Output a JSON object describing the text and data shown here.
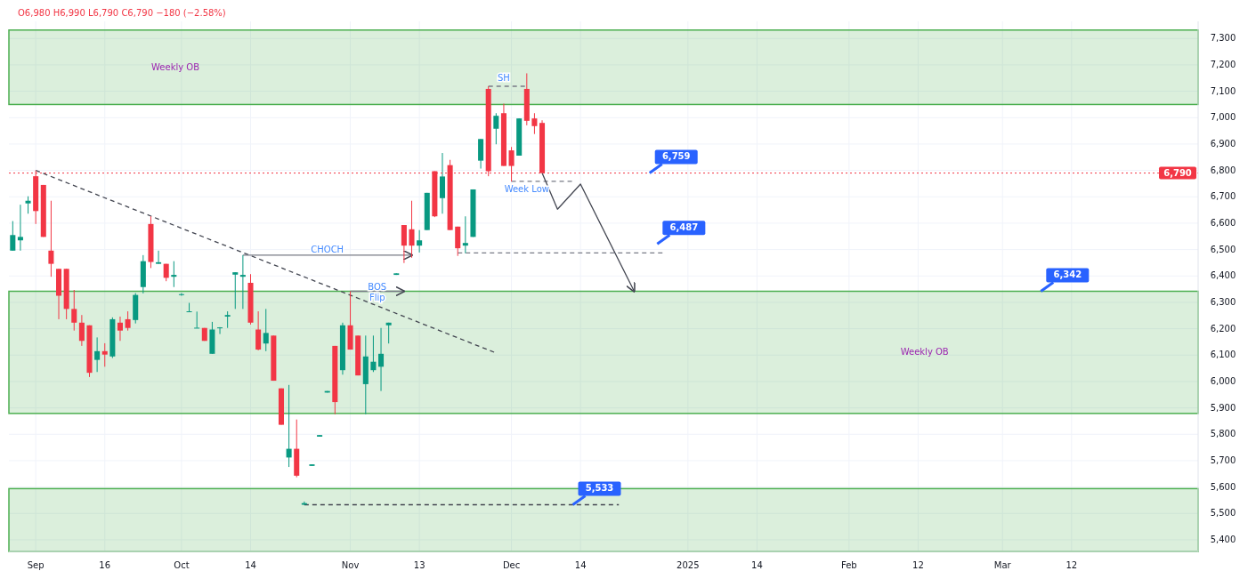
{
  "chart_data": {
    "type": "candlestick",
    "categories": [
      null,
      null,
      null,
      "Sep",
      null,
      null,
      null,
      null,
      null,
      null,
      null,
      null,
      "16",
      null,
      null,
      null,
      null,
      null,
      null,
      null,
      null,
      null,
      "Oct",
      null,
      null,
      null,
      null,
      null,
      null,
      null,
      null,
      "14",
      null,
      null,
      null,
      null,
      null,
      null,
      null,
      null,
      null,
      null,
      null,
      null,
      "Nov",
      null,
      null,
      null,
      null,
      null,
      null,
      null,
      null,
      "13",
      null,
      null,
      null,
      null,
      null,
      null,
      null,
      null,
      null,
      null,
      null,
      "Dec",
      null,
      null,
      null,
      null,
      null,
      null,
      null,
      null,
      "14",
      null,
      null,
      null,
      null,
      null,
      null,
      null,
      null,
      null,
      null,
      null,
      null,
      null,
      "2025",
      null,
      null,
      null,
      null,
      null,
      null,
      null,
      null,
      "14",
      null,
      null,
      null,
      null,
      null,
      null,
      null,
      null,
      null,
      null,
      null,
      "Feb",
      null,
      null,
      null,
      null,
      null,
      null,
      null,
      null,
      "12",
      null,
      null,
      null,
      null,
      null,
      null,
      null,
      null,
      null,
      null,
      "Mar",
      null,
      null,
      null,
      null,
      null,
      null,
      null,
      null,
      "12",
      null,
      null,
      null,
      null,
      null,
      null,
      null,
      null,
      null,
      null,
      null,
      null,
      null,
      null,
      null,
      null
    ],
    "ohlc": [
      [
        6496,
        6608,
        6496,
        6555
      ],
      [
        6535,
        6670,
        6496,
        6548
      ],
      [
        6675,
        6702,
        6636,
        6685
      ],
      [
        6778,
        6800,
        6597,
        6646
      ],
      [
        6745,
        6745,
        6548,
        6548
      ],
      [
        6496,
        6685,
        6397,
        6446
      ],
      [
        6427,
        6427,
        6236,
        6325
      ],
      [
        6427,
        6427,
        6236,
        6275
      ],
      [
        6275,
        6347,
        6193,
        6223
      ],
      [
        6223,
        6252,
        6135,
        6154
      ],
      [
        6213,
        6213,
        6017,
        6033
      ],
      [
        6082,
        6167,
        6036,
        6115
      ],
      [
        6115,
        6145,
        6056,
        6102
      ],
      [
        6095,
        6243,
        6089,
        6236
      ],
      [
        6223,
        6246,
        6154,
        6193
      ],
      [
        6236,
        6266,
        6193,
        6203
      ],
      [
        6233,
        6335,
        6220,
        6328
      ],
      [
        6358,
        6479,
        6334,
        6456
      ],
      [
        6597,
        6626,
        6430,
        6453
      ],
      [
        6446,
        6496,
        6446,
        6452
      ],
      [
        6446,
        6446,
        6380,
        6393
      ],
      [
        6397,
        6456,
        6358,
        6404
      ],
      [
        6330,
        6335,
        6325,
        6331
      ],
      [
        6265,
        6298,
        6265,
        6266
      ],
      [
        6203,
        6265,
        6203,
        6204
      ],
      [
        6203,
        6203,
        6154,
        6154
      ],
      [
        6105,
        6226,
        6105,
        6197
      ],
      [
        6203,
        6206,
        6180,
        6205
      ],
      [
        6246,
        6266,
        6203,
        6252
      ],
      [
        6405,
        6414,
        6275,
        6414
      ],
      [
        6397,
        6479,
        6275,
        6404
      ],
      [
        6374,
        6407,
        6216,
        6223
      ],
      [
        6197,
        6266,
        6118,
        6121
      ],
      [
        6144,
        6275,
        6115,
        6184
      ],
      [
        6174,
        6174,
        6003,
        6003
      ],
      [
        5974,
        5974,
        5836,
        5836
      ],
      [
        5712,
        5987,
        5676,
        5745
      ],
      [
        5745,
        5856,
        5637,
        5643
      ],
      [
        5533,
        5545,
        5533,
        5539
      ],
      [
        5680,
        5686,
        5680,
        5686
      ],
      [
        5791,
        5797,
        5791,
        5797
      ],
      [
        5958,
        5964,
        5958,
        5964
      ],
      [
        6135,
        6135,
        5876,
        5922
      ],
      [
        6043,
        6223,
        6026,
        6213
      ],
      [
        6213,
        6342,
        6121,
        6121
      ],
      [
        6174,
        6174,
        6023,
        6023
      ],
      [
        5990,
        6174,
        5876,
        6095
      ],
      [
        6043,
        6174,
        6036,
        6075
      ],
      [
        6056,
        6203,
        5964,
        6105
      ],
      [
        6213,
        6223,
        6144,
        6223
      ],
      [
        6404,
        6410,
        6404,
        6410
      ],
      [
        6593,
        6593,
        6449,
        6515
      ],
      [
        6577,
        6685,
        6469,
        6515
      ],
      [
        6515,
        6574,
        6489,
        6535
      ],
      [
        6574,
        6715,
        6574,
        6715
      ],
      [
        6797,
        6797,
        6623,
        6626
      ],
      [
        6695,
        6866,
        6636,
        6777
      ],
      [
        6820,
        6840,
        6574,
        6574
      ],
      [
        6587,
        6587,
        6476,
        6505
      ],
      [
        6515,
        6626,
        6486,
        6525
      ],
      [
        6548,
        6728,
        6548,
        6728
      ],
      [
        6837,
        6919,
        6807,
        6919
      ],
      [
        7109,
        7119,
        6778,
        6797
      ],
      [
        6958,
        7017,
        6899,
        7007
      ],
      [
        7017,
        7053,
        6817,
        6817
      ],
      [
        6876,
        6889,
        6758,
        6817
      ],
      [
        6856,
        6997,
        6856,
        6997
      ],
      [
        7109,
        7168,
        6971,
        6988
      ],
      [
        6997,
        7017,
        6938,
        6968
      ],
      [
        6980,
        6990,
        6790,
        6790
      ],
      null,
      null,
      null,
      null,
      null,
      null,
      null,
      null,
      null,
      null,
      null,
      null,
      null,
      null,
      null,
      null,
      null,
      null,
      null,
      null,
      null,
      null,
      null,
      null,
      null,
      null,
      null,
      null,
      null,
      null,
      null,
      null,
      null,
      null,
      null,
      null,
      null,
      null,
      null,
      null,
      null,
      null,
      null,
      null,
      null,
      null,
      null,
      null,
      null,
      null,
      null,
      null,
      null,
      null,
      null,
      null,
      null,
      null,
      null,
      null,
      null,
      null,
      null,
      null,
      null,
      null,
      null,
      null,
      null,
      null,
      null,
      null,
      null,
      null,
      null,
      null,
      null,
      null,
      null,
      null,
      null,
      null,
      null,
      null,
      null
    ],
    "series": [
      {
        "type": "line",
        "color": "#434651",
        "line_style": "dashed",
        "values": [
          null,
          null,
          null,
          6800,
          null,
          null,
          null,
          null,
          null,
          null,
          null,
          null,
          null,
          null,
          null,
          null,
          null,
          null,
          null,
          null,
          null,
          null,
          null,
          null,
          null,
          null,
          null,
          null,
          null,
          null,
          null,
          null,
          null,
          null,
          null,
          null,
          null,
          null,
          null,
          null,
          null,
          null,
          null,
          null,
          null,
          null,
          null,
          null,
          null,
          null,
          null,
          null,
          null,
          null,
          null,
          null,
          null,
          null,
          null,
          null,
          null,
          null,
          null,
          6108,
          null,
          null,
          null,
          null,
          null,
          null,
          null,
          null,
          null,
          null,
          null,
          null,
          null,
          null,
          null,
          null,
          null,
          null,
          null,
          null,
          null,
          null,
          null,
          null,
          null,
          null,
          null,
          null,
          null,
          null,
          null,
          null,
          null,
          null,
          null,
          null,
          null,
          null,
          null,
          null,
          null,
          null,
          null,
          null,
          null,
          null,
          null,
          null,
          null,
          null,
          null,
          null,
          null,
          null,
          null,
          null,
          null,
          null,
          null,
          null,
          null,
          null,
          null,
          null,
          null,
          null,
          null,
          null,
          null,
          null,
          null,
          null,
          null,
          null,
          null,
          null,
          null,
          null,
          null,
          null,
          null,
          null,
          null,
          null,
          null,
          null,
          null,
          null,
          null,
          null,
          null
        ]
      },
      {
        "type": "line",
        "color": "#787b86",
        "line_style": "solid",
        "values": [
          null,
          null,
          null,
          null,
          null,
          null,
          null,
          null,
          null,
          null,
          null,
          null,
          null,
          null,
          null,
          null,
          null,
          null,
          null,
          null,
          null,
          null,
          null,
          null,
          null,
          null,
          null,
          null,
          null,
          null,
          6479,
          null,
          null,
          null,
          null,
          null,
          null,
          null,
          null,
          null,
          null,
          null,
          null,
          null,
          null,
          null,
          null,
          null,
          null,
          null,
          null,
          null,
          6479,
          null,
          null,
          null,
          null,
          null,
          null,
          null,
          null,
          null,
          null,
          null,
          null,
          null,
          null,
          null,
          null,
          null,
          null,
          null,
          null,
          null,
          null,
          null,
          null,
          null,
          null,
          null,
          null,
          null,
          null,
          null,
          null,
          null,
          null,
          null,
          null,
          null,
          null,
          null,
          null,
          null,
          null,
          null,
          null,
          null,
          null,
          null,
          null,
          null,
          null,
          null,
          null,
          null,
          null,
          null,
          null,
          null,
          null,
          null,
          null,
          null,
          null,
          null,
          null,
          null,
          null,
          null,
          null,
          null,
          null,
          null,
          null,
          null,
          null,
          null,
          null,
          null,
          null,
          null,
          null,
          null,
          null,
          null,
          null,
          null,
          null,
          null,
          null,
          null,
          null,
          null,
          null,
          null,
          null,
          null,
          null,
          null,
          null,
          null,
          null,
          null,
          null
        ]
      },
      {
        "type": "line",
        "color": "#787b86",
        "line_style": "solid",
        "values": [
          null,
          null,
          null,
          null,
          null,
          null,
          null,
          null,
          null,
          null,
          null,
          null,
          null,
          null,
          null,
          null,
          null,
          null,
          null,
          null,
          null,
          null,
          null,
          null,
          null,
          null,
          null,
          null,
          null,
          null,
          null,
          null,
          null,
          null,
          null,
          null,
          null,
          null,
          null,
          null,
          null,
          null,
          null,
          null,
          6342,
          null,
          null,
          null,
          null,
          null,
          null,
          6342,
          null,
          null,
          null,
          null,
          null,
          null,
          null,
          null,
          null,
          null,
          null,
          null,
          null,
          null,
          null,
          null,
          null,
          null,
          null,
          null,
          null,
          null,
          null,
          null,
          null,
          null,
          null,
          null,
          null,
          null,
          null,
          null,
          null,
          null,
          null,
          null,
          null,
          null,
          null,
          null,
          null,
          null,
          null,
          null,
          null,
          null,
          null,
          null,
          null,
          null,
          null,
          null,
          null,
          null,
          null,
          null,
          null,
          null,
          null,
          null,
          null,
          null,
          null,
          null,
          null,
          null,
          null,
          null,
          null,
          null,
          null,
          null,
          null,
          null,
          null,
          null,
          null,
          null,
          null,
          null,
          null,
          null,
          null,
          null,
          null,
          null,
          null,
          null,
          null,
          null,
          null,
          null,
          null,
          null,
          null,
          null,
          null,
          null,
          null,
          null,
          null,
          null,
          null
        ]
      },
      {
        "type": "line",
        "color": "#787b86",
        "line_style": "dashed",
        "values": [
          null,
          null,
          null,
          null,
          null,
          null,
          null,
          null,
          null,
          null,
          null,
          null,
          null,
          null,
          null,
          null,
          null,
          null,
          null,
          null,
          null,
          null,
          null,
          null,
          null,
          null,
          null,
          null,
          null,
          null,
          null,
          null,
          null,
          null,
          null,
          null,
          null,
          null,
          null,
          null,
          null,
          null,
          null,
          null,
          null,
          null,
          null,
          null,
          null,
          null,
          null,
          null,
          null,
          null,
          null,
          null,
          null,
          null,
          null,
          null,
          null,
          null,
          7119,
          null,
          null,
          null,
          null,
          7119,
          null,
          null,
          null,
          null,
          null,
          null,
          null,
          null,
          null,
          null,
          null,
          null,
          null,
          null,
          null,
          null,
          null,
          null,
          null,
          null,
          null,
          null,
          null,
          null,
          null,
          null,
          null,
          null,
          null,
          null,
          null,
          null,
          null,
          null,
          null,
          null,
          null,
          null,
          null,
          null,
          null,
          null,
          null,
          null,
          null,
          null,
          null,
          null,
          null,
          null,
          null,
          null,
          null,
          null,
          null,
          null,
          null,
          null,
          null,
          null,
          null,
          null,
          null,
          null,
          null,
          null,
          null,
          null,
          null,
          null,
          null,
          null,
          null,
          null,
          null,
          null,
          null,
          null,
          null,
          null,
          null,
          null,
          null,
          null,
          null,
          null,
          null
        ]
      },
      {
        "type": "line",
        "color": "#787b86",
        "line_style": "dashed",
        "values": [
          null,
          null,
          null,
          null,
          null,
          null,
          null,
          null,
          null,
          null,
          null,
          null,
          null,
          null,
          null,
          null,
          null,
          null,
          null,
          null,
          null,
          null,
          null,
          null,
          null,
          null,
          null,
          null,
          null,
          null,
          null,
          null,
          null,
          null,
          null,
          null,
          null,
          null,
          null,
          null,
          null,
          null,
          null,
          null,
          null,
          null,
          null,
          null,
          null,
          null,
          null,
          null,
          null,
          null,
          null,
          null,
          null,
          null,
          null,
          null,
          null,
          null,
          null,
          null,
          null,
          6759,
          null,
          null,
          null,
          null,
          null,
          null,
          null,
          6759,
          null,
          null,
          null,
          null,
          null,
          null,
          null,
          null,
          null,
          null,
          null,
          null,
          null,
          null,
          null,
          null,
          null,
          null,
          null,
          null,
          null,
          null,
          null,
          null,
          null,
          null,
          null,
          null,
          null,
          null,
          null,
          null,
          null,
          null,
          null,
          null,
          null,
          null,
          null,
          null,
          null,
          null,
          null,
          null,
          null,
          null,
          null,
          null,
          null,
          null,
          null,
          null,
          null,
          null,
          null,
          null,
          null,
          null,
          null,
          null,
          null,
          null,
          null,
          null,
          null,
          null,
          null,
          null,
          null,
          null,
          null,
          null,
          null,
          null,
          null,
          null,
          null,
          null,
          null,
          null,
          null
        ]
      },
      {
        "type": "line",
        "color": "#787b86",
        "line_style": "dashed",
        "values": [
          null,
          null,
          null,
          null,
          null,
          null,
          null,
          null,
          null,
          null,
          null,
          null,
          null,
          null,
          null,
          null,
          null,
          null,
          null,
          null,
          null,
          null,
          null,
          null,
          null,
          null,
          null,
          null,
          null,
          null,
          null,
          null,
          null,
          null,
          null,
          null,
          null,
          null,
          null,
          null,
          null,
          null,
          null,
          null,
          null,
          null,
          null,
          null,
          null,
          null,
          null,
          null,
          null,
          null,
          null,
          null,
          null,
          null,
          6487,
          null,
          null,
          null,
          null,
          null,
          null,
          null,
          null,
          null,
          null,
          null,
          null,
          null,
          null,
          null,
          null,
          null,
          null,
          null,
          null,
          null,
          null,
          null,
          null,
          null,
          null,
          6487,
          null,
          null,
          null,
          null,
          null,
          null,
          null,
          null,
          null,
          null,
          null,
          null,
          null,
          null,
          null,
          null,
          null,
          null,
          null,
          null,
          null,
          null,
          null,
          null,
          null,
          null,
          null,
          null,
          null,
          null,
          null,
          null,
          null,
          null,
          null,
          null,
          null,
          null,
          null,
          null,
          null,
          null,
          null,
          null,
          null,
          null,
          null,
          null,
          null,
          null,
          null,
          null,
          null,
          null,
          null,
          null,
          null,
          null,
          null,
          null,
          null,
          null,
          null,
          null,
          null,
          null,
          null,
          null,
          null
        ]
      },
      {
        "type": "line",
        "color": "#434651",
        "line_style": "dashed",
        "values": [
          null,
          null,
          null,
          null,
          null,
          null,
          null,
          null,
          null,
          null,
          null,
          null,
          null,
          null,
          null,
          null,
          null,
          null,
          null,
          null,
          null,
          null,
          null,
          null,
          null,
          null,
          null,
          null,
          null,
          null,
          null,
          null,
          null,
          null,
          null,
          null,
          null,
          null,
          5533,
          null,
          null,
          null,
          null,
          null,
          null,
          null,
          null,
          null,
          null,
          null,
          null,
          null,
          null,
          null,
          null,
          null,
          null,
          null,
          null,
          null,
          null,
          null,
          null,
          null,
          null,
          null,
          null,
          null,
          null,
          null,
          null,
          null,
          null,
          null,
          null,
          null,
          null,
          null,
          null,
          5533,
          null,
          null,
          null,
          null,
          null,
          null,
          null,
          null,
          null,
          null,
          null,
          null,
          null,
          null,
          null,
          null,
          null,
          null,
          null,
          null,
          null,
          null,
          null,
          null,
          null,
          null,
          null,
          null,
          null,
          null,
          null,
          null,
          null,
          null,
          null,
          null,
          null,
          null,
          null,
          null,
          null,
          null,
          null,
          null,
          null,
          null,
          null,
          null,
          null,
          null,
          null,
          null,
          null,
          null,
          null,
          null,
          null,
          null,
          null,
          null,
          null,
          null,
          null,
          null,
          null,
          null,
          null,
          null,
          null,
          null,
          null,
          null,
          null,
          null,
          null
        ]
      },
      {
        "type": "line",
        "color": "#434651",
        "line_style": "solid",
        "values": [
          null,
          null,
          null,
          null,
          null,
          null,
          null,
          null,
          null,
          null,
          null,
          null,
          null,
          null,
          null,
          null,
          null,
          null,
          null,
          null,
          null,
          null,
          null,
          null,
          null,
          null,
          null,
          null,
          null,
          null,
          null,
          null,
          null,
          null,
          null,
          null,
          null,
          null,
          null,
          null,
          null,
          null,
          null,
          null,
          null,
          null,
          null,
          null,
          null,
          null,
          null,
          null,
          null,
          null,
          null,
          null,
          null,
          null,
          null,
          null,
          null,
          null,
          null,
          null,
          null,
          null,
          null,
          null,
          null,
          6790,
          null,
          6653,
          null,
          null,
          6748,
          null,
          null,
          null,
          null,
          null,
          null,
          6342,
          null,
          null,
          null,
          null,
          null,
          null,
          null,
          null,
          null,
          null,
          null,
          null,
          null,
          null,
          null,
          null,
          null,
          null,
          null,
          null,
          null,
          null,
          null,
          null,
          null,
          null,
          null,
          null,
          null,
          null,
          null,
          null,
          null,
          null,
          null,
          null,
          null,
          null,
          null,
          null,
          null,
          null,
          null,
          null,
          null,
          null,
          null,
          null,
          null,
          null,
          null,
          null,
          null,
          null,
          null,
          null,
          null,
          null,
          null,
          null,
          null,
          null,
          null,
          null,
          null,
          null,
          null,
          null,
          null,
          null,
          null,
          null,
          null
        ]
      }
    ],
    "ylim": [
      5356,
      7365
    ],
    "yticks": [
      {
        "value": 5400,
        "label": "5,400"
      },
      {
        "value": 5500,
        "label": "5,500"
      },
      {
        "value": 5600,
        "label": "5,600"
      },
      {
        "value": 5700,
        "label": "5,700"
      },
      {
        "value": 5800,
        "label": "5,800"
      },
      {
        "value": 5900,
        "label": "5,900"
      },
      {
        "value": 6000,
        "label": "6,000"
      },
      {
        "value": 6100,
        "label": "6,100"
      },
      {
        "value": 6200,
        "label": "6,200"
      },
      {
        "value": 6300,
        "label": "6,300"
      },
      {
        "value": 6400,
        "label": "6,400"
      },
      {
        "value": 6500,
        "label": "6,500"
      },
      {
        "value": 6600,
        "label": "6,600"
      },
      {
        "value": 6700,
        "label": "6,700"
      },
      {
        "value": 6800,
        "label": "6,800"
      },
      {
        "value": 6900,
        "label": "6,900"
      },
      {
        "value": 7000,
        "label": "7,000"
      },
      {
        "value": 7100,
        "label": "7,100"
      },
      {
        "value": 7200,
        "label": "7,200"
      },
      {
        "value": 7300,
        "label": "7,300"
      }
    ],
    "bands": [
      {
        "axis": "y",
        "from": 7050,
        "to": 7332,
        "label": "Weekly OB",
        "color": "#4caf50"
      },
      {
        "axis": "y",
        "from": 5879,
        "to": 6342,
        "label": "Weekly OB",
        "color": "#4caf50"
      },
      {
        "axis": "y",
        "from": 5356,
        "to": 5594,
        "color": "#4caf50"
      }
    ],
    "ref_lines": [
      {
        "axis": "y",
        "value": 6790,
        "label": "6,790",
        "color": "#f23645",
        "line_style": "dotted"
      }
    ],
    "annotations": [
      "O6,980 H6,990 L6,790 C6,790 −180 (−2.58%)",
      {
        "text": "SH",
        "y": 7119
      },
      {
        "text": "Week Low",
        "y": 6759
      },
      {
        "text": "CHOCH",
        "y": 6479
      },
      {
        "text": "BOS",
        "y": 6342
      },
      {
        "text": "Flip",
        "y": 6342
      },
      "6,759",
      "6,487",
      {
        "text": "6,342",
        "y": 6342
      },
      {
        "text": "5,533",
        "y": 5533
      }
    ],
    "grid": true
  }
}
